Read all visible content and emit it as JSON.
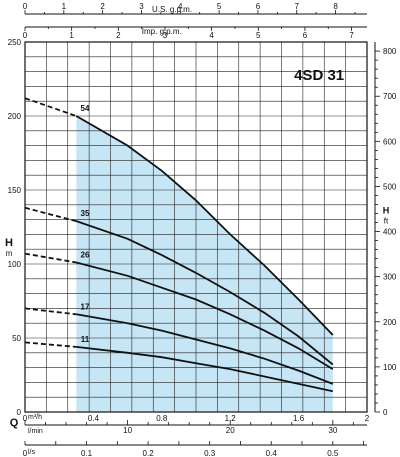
{
  "chart_data": {
    "type": "line",
    "title": "4SD 31",
    "axes": {
      "left": {
        "label_main": "H",
        "label_unit": "m",
        "range": [
          0,
          250
        ],
        "ticks": [
          0,
          50,
          100,
          150,
          200,
          250
        ]
      },
      "right": {
        "label_main": "H",
        "label_unit": "ft",
        "range": [
          0,
          820.2
        ],
        "ticks": [
          0,
          100,
          200,
          300,
          400,
          500,
          600,
          700,
          800
        ]
      },
      "bottom_m3h": {
        "label_main": "Q",
        "label_unit": "m³/h",
        "range": [
          0,
          2.0
        ],
        "ticks": [
          0,
          0.4,
          0.8,
          1.2,
          1.6,
          2
        ]
      },
      "bottom_lmin": {
        "label_unit": "l/min",
        "range": [
          0,
          33.33
        ],
        "ticks": [
          0,
          10,
          20,
          30
        ]
      },
      "bottom_ls": {
        "label_unit": "l/s",
        "range": [
          0,
          0.5556
        ],
        "ticks": [
          0,
          0.1,
          0.2,
          0.3,
          0.4,
          0.5
        ]
      },
      "top_usgpm": {
        "label": "U.S. g.p.m.",
        "range": [
          0,
          8.81
        ],
        "ticks": [
          0,
          1,
          2,
          3,
          4,
          5,
          6,
          7,
          8
        ]
      },
      "top_impgpm": {
        "label": "Imp. g.p.m.",
        "range": [
          0,
          7.33
        ],
        "ticks": [
          0,
          1,
          2,
          3,
          4,
          5,
          6,
          7
        ]
      }
    },
    "operating_range": {
      "q_min": 0.3,
      "q_max": 1.8,
      "color": "#c6e6f5"
    },
    "curve_color": "#111111",
    "series": [
      {
        "name": "54",
        "dashed": [
          [
            0,
            212
          ],
          [
            0.3,
            200
          ]
        ],
        "solid": [
          [
            0.3,
            200
          ],
          [
            0.6,
            180
          ],
          [
            0.8,
            163
          ],
          [
            1.0,
            143
          ],
          [
            1.2,
            120
          ],
          [
            1.4,
            99
          ],
          [
            1.6,
            76
          ],
          [
            1.8,
            52
          ]
        ]
      },
      {
        "name": "35",
        "dashed": [
          [
            0,
            138
          ],
          [
            0.3,
            129
          ]
        ],
        "solid": [
          [
            0.3,
            129
          ],
          [
            0.6,
            117
          ],
          [
            0.8,
            106
          ],
          [
            1.0,
            94
          ],
          [
            1.2,
            81
          ],
          [
            1.4,
            67
          ],
          [
            1.6,
            51
          ],
          [
            1.8,
            32
          ]
        ]
      },
      {
        "name": "26",
        "dashed": [
          [
            0,
            107
          ],
          [
            0.3,
            101
          ]
        ],
        "solid": [
          [
            0.3,
            101
          ],
          [
            0.6,
            92
          ],
          [
            0.8,
            84
          ],
          [
            1.0,
            76
          ],
          [
            1.2,
            66
          ],
          [
            1.4,
            55
          ],
          [
            1.6,
            43
          ],
          [
            1.8,
            29
          ]
        ]
      },
      {
        "name": "17",
        "dashed": [
          [
            0,
            70
          ],
          [
            0.3,
            66
          ]
        ],
        "solid": [
          [
            0.3,
            66
          ],
          [
            0.6,
            60
          ],
          [
            0.8,
            55
          ],
          [
            1.0,
            49
          ],
          [
            1.2,
            43
          ],
          [
            1.4,
            36
          ],
          [
            1.6,
            28
          ],
          [
            1.8,
            19
          ]
        ]
      },
      {
        "name": "11",
        "dashed": [
          [
            0,
            47
          ],
          [
            0.3,
            44
          ]
        ],
        "solid": [
          [
            0.3,
            44
          ],
          [
            0.6,
            40
          ],
          [
            0.8,
            37
          ],
          [
            1.0,
            33
          ],
          [
            1.2,
            29
          ],
          [
            1.4,
            24
          ],
          [
            1.6,
            19
          ],
          [
            1.8,
            14
          ]
        ]
      }
    ]
  }
}
